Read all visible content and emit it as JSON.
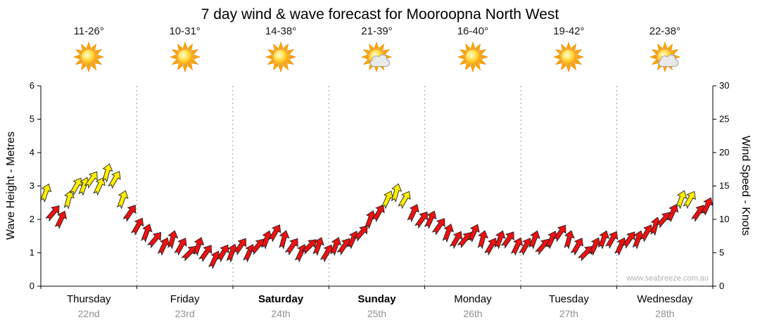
{
  "title": "7 day wind & wave forecast for Mooroopna North West",
  "watermark": "www.seabreeze.com.au",
  "axes": {
    "left_label": "Wave Height - Metres",
    "right_label": "Wind Speed - Knots",
    "left_ticks": [
      0,
      1,
      2,
      3,
      4,
      5,
      6
    ],
    "right_ticks": [
      0,
      5,
      10,
      15,
      20,
      25,
      30
    ],
    "left_range": [
      0,
      6
    ],
    "right_range": [
      0,
      30
    ]
  },
  "days": [
    {
      "name": "Thursday",
      "date": "22nd",
      "temp": "11-26°",
      "cloudy": false,
      "bold": false
    },
    {
      "name": "Friday",
      "date": "23rd",
      "temp": "10-31°",
      "cloudy": false,
      "bold": false
    },
    {
      "name": "Saturday",
      "date": "24th",
      "temp": "14-38°",
      "cloudy": false,
      "bold": true
    },
    {
      "name": "Sunday",
      "date": "25th",
      "temp": "21-39°",
      "cloudy": true,
      "bold": true
    },
    {
      "name": "Monday",
      "date": "26th",
      "temp": "16-40°",
      "cloudy": false,
      "bold": false
    },
    {
      "name": "Tuesday",
      "date": "27th",
      "temp": "19-42°",
      "cloudy": false,
      "bold": false
    },
    {
      "name": "Wednesday",
      "date": "28th",
      "temp": "22-38°",
      "cloudy": true,
      "bold": false
    }
  ],
  "chart_data": {
    "type": "scatter",
    "title": "7 day wind & wave forecast for Mooroopna North West",
    "categories": [
      "Thursday",
      "Friday",
      "Saturday",
      "Sunday",
      "Monday",
      "Tuesday",
      "Wednesday"
    ],
    "x_unit": "days",
    "x_range": [
      0,
      7
    ],
    "ylabel_left": "Wave Height - Metres",
    "y_left_range": [
      0,
      6
    ],
    "ylabel_right": "Wind Speed - Knots",
    "y_right_range": [
      0,
      30
    ],
    "grid": "vertical-dotted-day-boundaries",
    "legend": "none",
    "point_format": [
      "day_fraction",
      "knots",
      "direction_deg"
    ],
    "arrow_style": {
      "low_color": "#ee1111",
      "high_color": "#ffee00",
      "threshold_knots": 12.5,
      "outline": "#222222"
    },
    "series": [
      {
        "name": "wind_speed_knots",
        "points": [
          [
            0.05,
            14,
            20
          ],
          [
            0.13,
            11,
            40
          ],
          [
            0.21,
            10,
            25
          ],
          [
            0.29,
            13,
            15
          ],
          [
            0.37,
            15,
            30
          ],
          [
            0.45,
            15,
            20
          ],
          [
            0.53,
            16,
            35
          ],
          [
            0.61,
            15,
            25
          ],
          [
            0.69,
            17,
            15
          ],
          [
            0.77,
            16,
            30
          ],
          [
            0.85,
            13,
            20
          ],
          [
            0.93,
            11,
            35
          ],
          [
            1.01,
            9,
            30
          ],
          [
            1.1,
            8,
            20
          ],
          [
            1.19,
            7,
            40
          ],
          [
            1.28,
            6,
            25
          ],
          [
            1.37,
            7,
            15
          ],
          [
            1.46,
            6,
            30
          ],
          [
            1.55,
            5,
            45
          ],
          [
            1.64,
            6,
            20
          ],
          [
            1.72,
            5,
            35
          ],
          [
            1.81,
            4,
            25
          ],
          [
            1.9,
            5,
            30
          ],
          [
            1.99,
            5,
            20
          ],
          [
            2.08,
            6,
            35
          ],
          [
            2.17,
            5,
            25
          ],
          [
            2.26,
            6,
            40
          ],
          [
            2.35,
            7,
            20
          ],
          [
            2.44,
            8,
            30
          ],
          [
            2.53,
            7,
            15
          ],
          [
            2.62,
            6,
            35
          ],
          [
            2.71,
            5,
            25
          ],
          [
            2.8,
            6,
            45
          ],
          [
            2.89,
            6,
            20
          ],
          [
            2.98,
            5,
            30
          ],
          [
            3.07,
            6,
            20
          ],
          [
            3.16,
            6,
            35
          ],
          [
            3.25,
            7,
            25
          ],
          [
            3.34,
            8,
            40
          ],
          [
            3.43,
            10,
            20
          ],
          [
            3.52,
            11,
            30
          ],
          [
            3.61,
            13,
            25
          ],
          [
            3.7,
            14,
            15
          ],
          [
            3.79,
            13,
            30
          ],
          [
            3.88,
            11,
            25
          ],
          [
            3.97,
            10,
            35
          ],
          [
            4.06,
            10,
            25
          ],
          [
            4.15,
            9,
            35
          ],
          [
            4.24,
            8,
            20
          ],
          [
            4.33,
            7,
            30
          ],
          [
            4.42,
            7,
            40
          ],
          [
            4.51,
            8,
            25
          ],
          [
            4.6,
            7,
            15
          ],
          [
            4.69,
            6,
            30
          ],
          [
            4.78,
            7,
            20
          ],
          [
            4.87,
            7,
            35
          ],
          [
            4.96,
            6,
            25
          ],
          [
            5.05,
            6,
            30
          ],
          [
            5.14,
            7,
            20
          ],
          [
            5.23,
            6,
            40
          ],
          [
            5.32,
            7,
            25
          ],
          [
            5.41,
            8,
            35
          ],
          [
            5.5,
            7,
            15
          ],
          [
            5.59,
            6,
            30
          ],
          [
            5.68,
            5,
            45
          ],
          [
            5.77,
            6,
            25
          ],
          [
            5.86,
            7,
            20
          ],
          [
            5.95,
            7,
            30
          ],
          [
            6.04,
            6,
            25
          ],
          [
            6.13,
            7,
            35
          ],
          [
            6.22,
            7,
            20
          ],
          [
            6.31,
            8,
            30
          ],
          [
            6.4,
            9,
            15
          ],
          [
            6.49,
            10,
            40
          ],
          [
            6.58,
            11,
            25
          ],
          [
            6.67,
            13,
            20
          ],
          [
            6.76,
            13,
            30
          ],
          [
            6.85,
            11,
            35
          ],
          [
            6.94,
            12,
            25
          ]
        ]
      }
    ]
  }
}
